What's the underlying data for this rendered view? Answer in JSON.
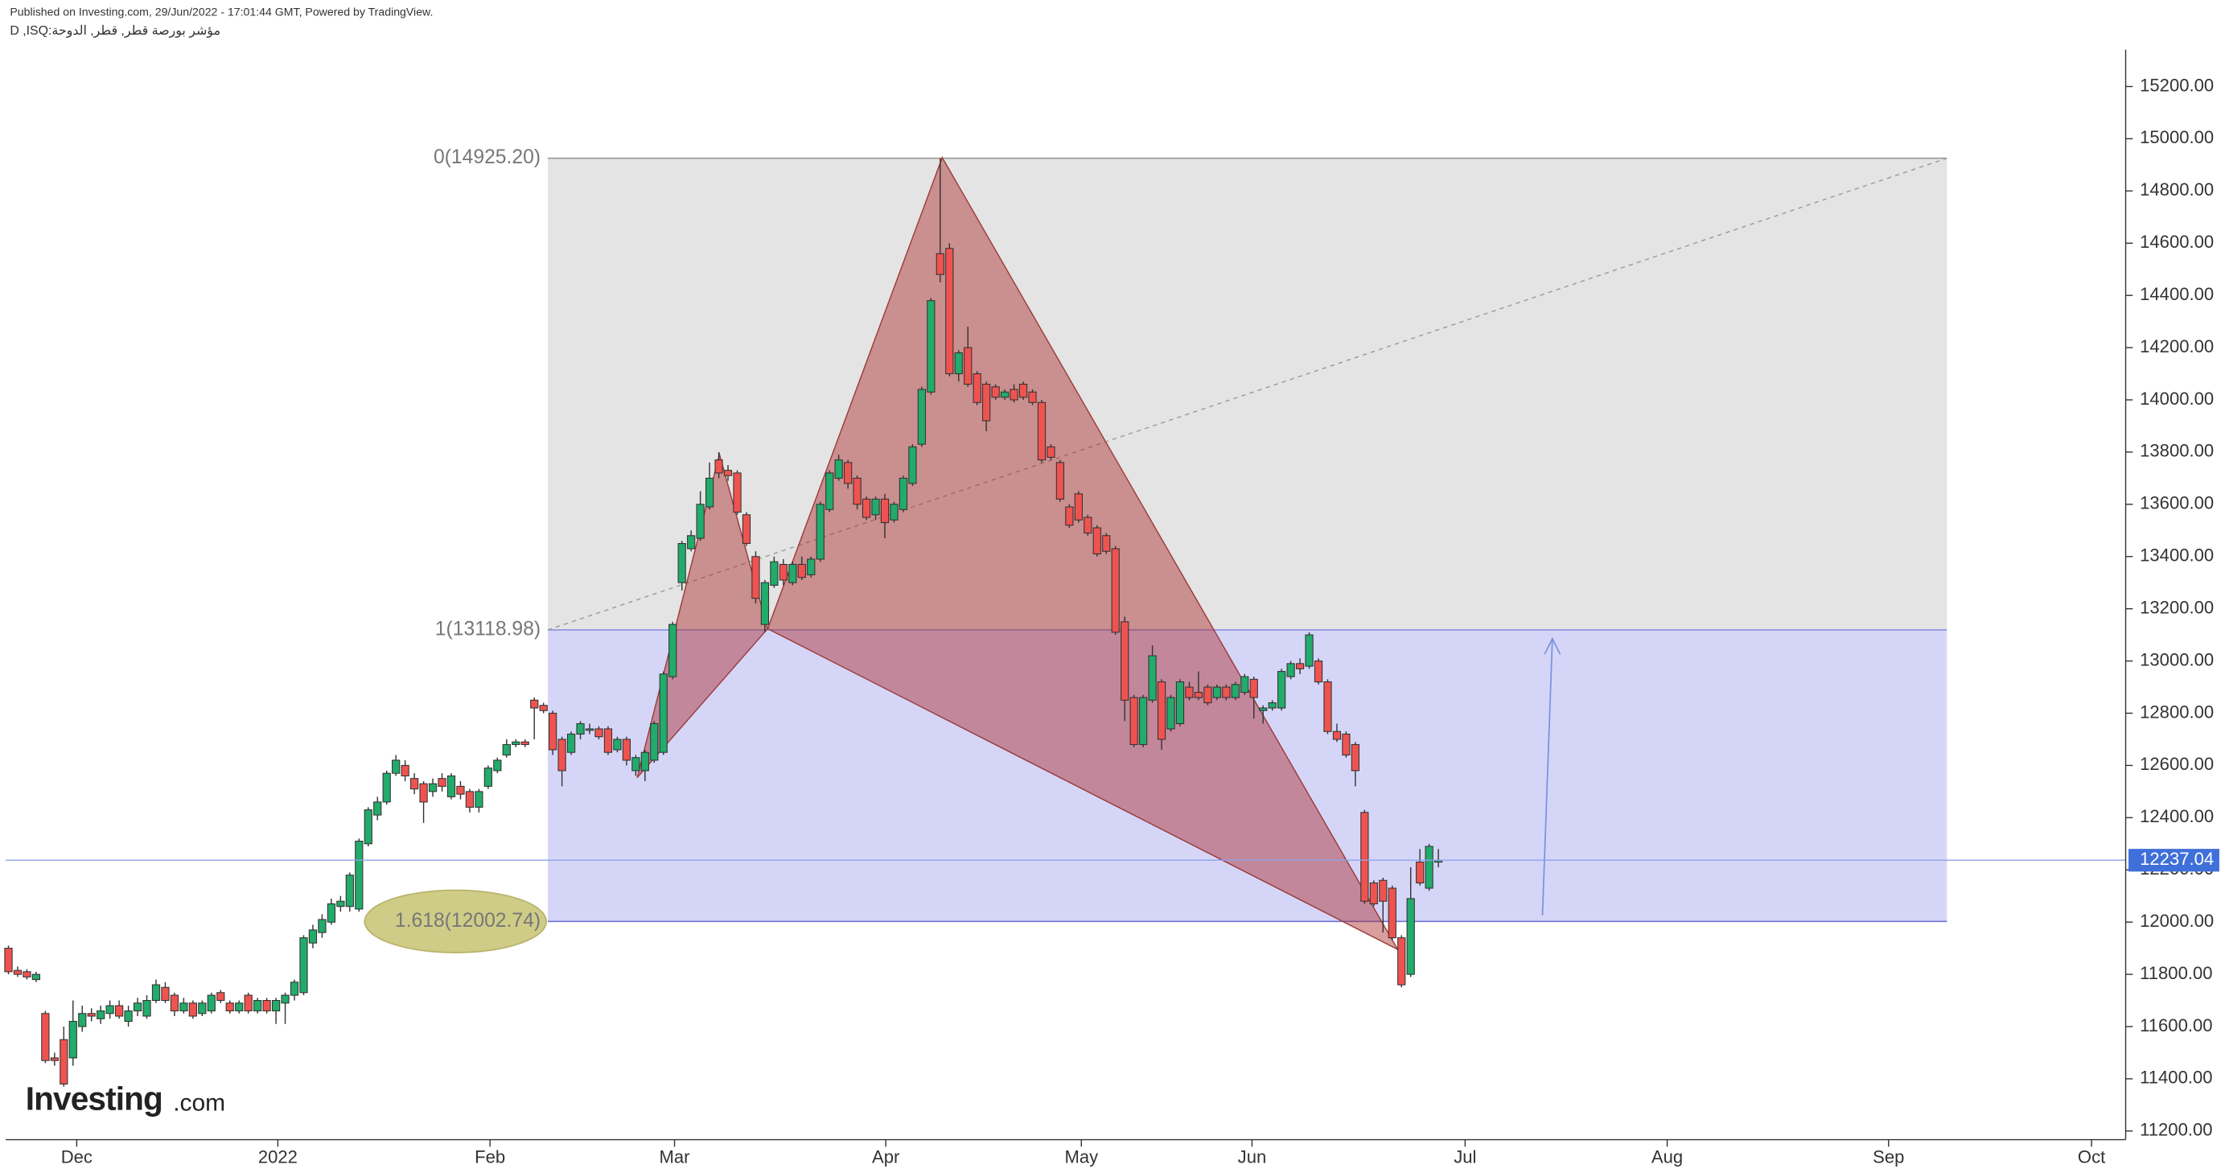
{
  "header": {
    "publisher_note": "Published on Investing.com, 29/Jun/2022 - 17:01:44 GMT, Powered by TradingView.",
    "symbol": "D ,ISQ:مؤشر بورصة قطر, قطر, الدوحة"
  },
  "logo": {
    "name": "Investing",
    "suffix": ".com"
  },
  "chart_data": {
    "type": "candlestick",
    "up_color": "#22ab6b",
    "down_color": "#ef5350",
    "grid": false,
    "open": [
      11900,
      11815,
      11810,
      11780,
      11650,
      11480,
      11550,
      11480,
      11600,
      11650,
      11630,
      11650,
      11680,
      11620,
      11660,
      11640,
      11700,
      11750,
      11720,
      11660,
      11690,
      11650,
      11660,
      11730,
      11690,
      11660,
      11720,
      11660,
      11700,
      11660,
      11690,
      11720,
      11730,
      11920,
      11960,
      12000,
      12060,
      12060,
      12050,
      12300,
      12410,
      12460,
      12570,
      12600,
      12550,
      12530,
      12500,
      12550,
      12480,
      12520,
      12500,
      12440,
      12520,
      12580,
      12640,
      12680,
      12690,
      12850,
      12830,
      12800,
      12700,
      12650,
      12720,
      12740,
      12740,
      12740,
      12660,
      12700,
      12580,
      12580,
      12620,
      12650,
      12940,
      13300,
      13430,
      13470,
      13590,
      13770,
      13730,
      13720,
      13560,
      13400,
      13140,
      13290,
      13370,
      13300,
      13370,
      13330,
      13390,
      13580,
      13700,
      13760,
      13700,
      13620,
      13560,
      13620,
      13540,
      13580,
      13680,
      13830,
      14030,
      14560,
      14580,
      14100,
      14200,
      14100,
      14060,
      14050,
      14010,
      14040,
      14060,
      14030,
      13990,
      13820,
      13760,
      13590,
      13640,
      13550,
      13510,
      13480,
      13430,
      13150,
      12860,
      12680,
      12850,
      12920,
      12740,
      12760,
      12900,
      12880,
      12900,
      12860,
      12900,
      12860,
      12880,
      12930,
      12810,
      12820,
      12820,
      12940,
      12990,
      12980,
      13000,
      12920,
      12730,
      12720,
      12680,
      12420,
      12150,
      12160,
      12130,
      11940,
      11800,
      12230,
      12130,
      12230
    ],
    "high": [
      11910,
      11830,
      11820,
      11810,
      11660,
      11500,
      11600,
      11700,
      11680,
      11670,
      11680,
      11700,
      11700,
      11680,
      11710,
      11720,
      11780,
      11770,
      11730,
      11710,
      11700,
      11700,
      11730,
      11740,
      11700,
      11700,
      11730,
      11710,
      11710,
      11710,
      11730,
      11780,
      11950,
      11990,
      12030,
      12090,
      12100,
      12190,
      12320,
      12440,
      12480,
      12580,
      12640,
      12620,
      12570,
      12540,
      12550,
      12570,
      12570,
      12540,
      12510,
      12510,
      12600,
      12630,
      12700,
      12700,
      12700,
      12860,
      12840,
      12810,
      12710,
      12730,
      12770,
      12760,
      12750,
      12750,
      12710,
      12710,
      12640,
      12660,
      12770,
      12960,
      13150,
      13460,
      13500,
      13650,
      13760,
      13800,
      13750,
      13730,
      13570,
      13420,
      13310,
      13400,
      13390,
      13380,
      13400,
      13400,
      13610,
      13730,
      13790,
      13770,
      13710,
      13630,
      13630,
      13640,
      13610,
      13710,
      13830,
      14050,
      14390,
      14925.2,
      14600,
      14190,
      14280,
      14110,
      14070,
      14060,
      14040,
      14060,
      14070,
      14040,
      14000,
      13830,
      13770,
      13600,
      13650,
      13560,
      13520,
      13490,
      13440,
      13170,
      12870,
      12870,
      13060,
      12930,
      12870,
      12930,
      12920,
      12960,
      12910,
      12910,
      12910,
      12920,
      12950,
      12940,
      12830,
      12850,
      12970,
      13000,
      13010,
      13110,
      13010,
      12930,
      12760,
      12730,
      12690,
      12430,
      12160,
      12170,
      12140,
      11950,
      12210,
      12280,
      12300,
      12280
    ],
    "low": [
      11800,
      11790,
      11780,
      11770,
      11460,
      11450,
      11370,
      11450,
      11580,
      11620,
      11610,
      11630,
      11630,
      11600,
      11640,
      11630,
      11690,
      11690,
      11640,
      11650,
      11630,
      11640,
      11650,
      11690,
      11650,
      11650,
      11650,
      11650,
      11650,
      11610,
      11610,
      11700,
      11720,
      11900,
      11940,
      11990,
      12040,
      12040,
      12040,
      12290,
      12390,
      12450,
      12560,
      12540,
      12490,
      12380,
      12480,
      12500,
      12470,
      12470,
      12420,
      12420,
      12510,
      12570,
      12630,
      12670,
      12670,
      12700,
      12800,
      12640,
      12520,
      12640,
      12700,
      12720,
      12700,
      12640,
      12650,
      12600,
      12560,
      12540,
      12610,
      12640,
      12930,
      13270,
      13420,
      13460,
      13580,
      13700,
      13690,
      13560,
      13440,
      13220,
      13110,
      13280,
      13290,
      13290,
      13310,
      13320,
      13380,
      13570,
      13690,
      13660,
      13580,
      13540,
      13540,
      13470,
      13530,
      13570,
      13670,
      13820,
      14020,
      14450,
      14090,
      14070,
      14050,
      13980,
      13880,
      14000,
      14000,
      13990,
      14000,
      13980,
      13760,
      13770,
      13610,
      13510,
      13530,
      13480,
      13400,
      13410,
      13100,
      12770,
      12670,
      12670,
      12840,
      12660,
      12730,
      12750,
      12850,
      12850,
      12830,
      12850,
      12850,
      12850,
      12870,
      12780,
      12760,
      12810,
      12810,
      12930,
      12950,
      12970,
      12910,
      12720,
      12690,
      12630,
      12520,
      12070,
      12060,
      11960,
      11930,
      11750,
      11790,
      12140,
      12120,
      12210
    ],
    "close": [
      11810,
      11800,
      11790,
      11800,
      11470,
      11470,
      11380,
      11620,
      11650,
      11640,
      11660,
      11680,
      11640,
      11660,
      11690,
      11700,
      11760,
      11700,
      11660,
      11690,
      11640,
      11690,
      11720,
      11700,
      11660,
      11690,
      11660,
      11700,
      11660,
      11700,
      11720,
      11770,
      11940,
      11970,
      12010,
      12070,
      12080,
      12180,
      12310,
      12430,
      12460,
      12570,
      12620,
      12560,
      12510,
      12460,
      12530,
      12520,
      12560,
      12490,
      12440,
      12500,
      12590,
      12620,
      12680,
      12690,
      12680,
      12820,
      12810,
      12660,
      12580,
      12720,
      12760,
      12740,
      12710,
      12650,
      12700,
      12620,
      12630,
      12650,
      12760,
      12950,
      13140,
      13450,
      13480,
      13600,
      13700,
      13720,
      13710,
      13570,
      13450,
      13240,
      13300,
      13380,
      13310,
      13370,
      13320,
      13390,
      13600,
      13720,
      13770,
      13680,
      13600,
      13550,
      13620,
      13530,
      13600,
      13700,
      13820,
      14040,
      14380,
      14480,
      14100,
      14180,
      14060,
      13990,
      13920,
      14010,
      14030,
      14000,
      14010,
      13990,
      13770,
      13780,
      13620,
      13520,
      13540,
      13490,
      13410,
      13420,
      13110,
      12850,
      12680,
      12860,
      13020,
      12700,
      12860,
      12920,
      12860,
      12860,
      12840,
      12900,
      12860,
      12910,
      12940,
      12860,
      12820,
      12840,
      12960,
      12990,
      12970,
      13100,
      12920,
      12730,
      12700,
      12640,
      12580,
      12080,
      12070,
      12080,
      11940,
      11760,
      12090,
      12150,
      12290,
      12237.04
    ],
    "xlim": [
      -0.3,
      229.5
    ],
    "xticks": [
      {
        "value": 7.4,
        "label": "Dec"
      },
      {
        "value": 29.2,
        "label": "2022"
      },
      {
        "value": 52.2,
        "label": "Feb"
      },
      {
        "value": 72.2,
        "label": "Mar"
      },
      {
        "value": 95.1,
        "label": "Apr"
      },
      {
        "value": 116.3,
        "label": "May"
      },
      {
        "value": 134.8,
        "label": "Jun"
      },
      {
        "value": 157.9,
        "label": "Jul"
      },
      {
        "value": 179.8,
        "label": "Aug"
      },
      {
        "value": 203.8,
        "label": "Sep"
      },
      {
        "value": 225.8,
        "label": "Oct"
      }
    ],
    "ylim": [
      11167,
      15341
    ],
    "yticks": [
      {
        "value": 11200,
        "label": "11200.00"
      },
      {
        "value": 11400,
        "label": "11400.00"
      },
      {
        "value": 11600,
        "label": "11600.00"
      },
      {
        "value": 11800,
        "label": "11800.00"
      },
      {
        "value": 12000,
        "label": "12000.00"
      },
      {
        "value": 12200,
        "label": "12200.00"
      },
      {
        "value": 12400,
        "label": "12400.00"
      },
      {
        "value": 12600,
        "label": "12600.00"
      },
      {
        "value": 12800,
        "label": "12800.00"
      },
      {
        "value": 13000,
        "label": "13000.00"
      },
      {
        "value": 13200,
        "label": "13200.00"
      },
      {
        "value": 13400,
        "label": "13400.00"
      },
      {
        "value": 13600,
        "label": "13600.00"
      },
      {
        "value": 13800,
        "label": "13800.00"
      },
      {
        "value": 14000,
        "label": "14000.00"
      },
      {
        "value": 14200,
        "label": "14200.00"
      },
      {
        "value": 14400,
        "label": "14400.00"
      },
      {
        "value": 14600,
        "label": "14600.00"
      },
      {
        "value": 14800,
        "label": "14800.00"
      },
      {
        "value": 15000,
        "label": "15000.00"
      },
      {
        "value": 15200,
        "label": "15200.00"
      }
    ],
    "fib_levels": [
      {
        "label": "0(14925.20)",
        "value": 14925.2
      },
      {
        "label": "1(13118.98)",
        "value": 13118.98
      },
      {
        "label": "1.618(12002.74)",
        "value": 12002.74
      }
    ]
  }
}
